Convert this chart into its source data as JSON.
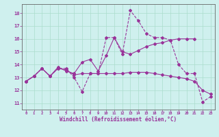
{
  "xlabel": "Windchill (Refroidissement éolien,°C)",
  "bg_color": "#cff0ee",
  "line_color": "#993399",
  "grid_color": "#aaddcc",
  "xlim": [
    -0.5,
    23.5
  ],
  "ylim": [
    10.5,
    18.7
  ],
  "xticks": [
    0,
    1,
    2,
    3,
    4,
    5,
    6,
    7,
    8,
    9,
    10,
    11,
    12,
    13,
    14,
    15,
    16,
    17,
    18,
    19,
    20,
    21,
    22,
    23
  ],
  "yticks": [
    11,
    12,
    13,
    14,
    15,
    16,
    17,
    18
  ],
  "line1_x": [
    0,
    1,
    2,
    3,
    4,
    5,
    6,
    7,
    8,
    9,
    10,
    11,
    12,
    13,
    14,
    15,
    16,
    17,
    18,
    19,
    20,
    21,
    22,
    23
  ],
  "line1_y": [
    12.7,
    13.1,
    13.7,
    13.1,
    13.7,
    13.7,
    13.0,
    11.9,
    13.3,
    13.3,
    16.1,
    16.1,
    14.8,
    18.2,
    17.4,
    16.4,
    16.1,
    16.1,
    15.9,
    14.0,
    13.3,
    13.3,
    11.1,
    11.5
  ],
  "line2_x": [
    0,
    1,
    2,
    3,
    4,
    5,
    6,
    7,
    8,
    9,
    10,
    11,
    12,
    13,
    14,
    15,
    16,
    17,
    18,
    19,
    20,
    21
  ],
  "line2_y": [
    12.7,
    13.1,
    13.7,
    13.1,
    13.8,
    13.5,
    13.3,
    14.2,
    14.4,
    13.5,
    14.7,
    16.1,
    15.0,
    14.8,
    15.1,
    15.4,
    15.6,
    15.7,
    15.9,
    16.0,
    16.0,
    16.0
  ],
  "line3_x": [
    0,
    1,
    2,
    3,
    4,
    5,
    6,
    7,
    8,
    9,
    10,
    11,
    12,
    13,
    14,
    15,
    16,
    17,
    18,
    19,
    20,
    21,
    22,
    23
  ],
  "line3_y": [
    12.7,
    13.1,
    13.7,
    13.1,
    13.7,
    13.6,
    13.2,
    13.3,
    13.3,
    13.3,
    13.3,
    13.3,
    13.3,
    13.4,
    13.4,
    13.4,
    13.3,
    13.2,
    13.1,
    13.0,
    12.9,
    12.7,
    12.0,
    11.7
  ]
}
